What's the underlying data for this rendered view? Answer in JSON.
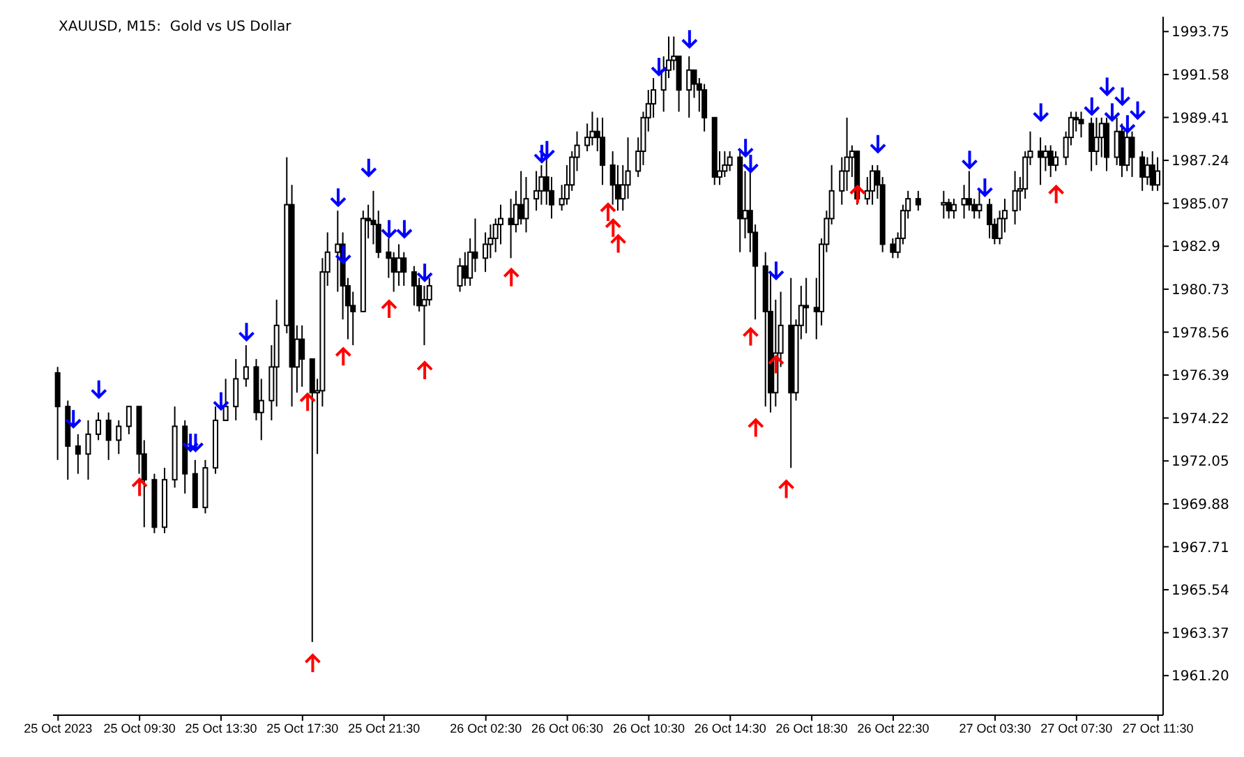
{
  "chart_data": {
    "type": "candlestick",
    "title": "XAUUSD, M15:  Gold vs US Dollar",
    "x": [
      "2023-10-25T05:30",
      "2023-10-25T06:00",
      "2023-10-25T06:30",
      "2023-10-25T07:00",
      "2023-10-25T07:30",
      "2023-10-25T08:00",
      "2023-10-25T08:30",
      "2023-10-25T09:00",
      "2023-10-25T09:30",
      "2023-10-25T09:45",
      "2023-10-25T10:15",
      "2023-10-25T10:45",
      "2023-10-25T11:15",
      "2023-10-25T11:45",
      "2023-10-25T12:15",
      "2023-10-25T12:45",
      "2023-10-25T13:15",
      "2023-10-25T13:45",
      "2023-10-25T14:15",
      "2023-10-25T14:45",
      "2023-10-25T15:15",
      "2023-10-25T15:30",
      "2023-10-25T16:00",
      "2023-10-25T16:15",
      "2023-10-25T16:45",
      "2023-10-25T17:00",
      "2023-10-25T17:15",
      "2023-10-25T17:30",
      "2023-10-25T18:00",
      "2023-10-25T18:15",
      "2023-10-25T18:30",
      "2023-10-25T18:45",
      "2023-10-25T19:15",
      "2023-10-25T19:30",
      "2023-10-25T19:45",
      "2023-10-25T20:00",
      "2023-10-25T20:30",
      "2023-10-25T20:45",
      "2023-10-25T21:00",
      "2023-10-25T21:15",
      "2023-10-25T21:45",
      "2023-10-25T22:00",
      "2023-10-25T22:15",
      "2023-10-25T22:30",
      "2023-10-25T23:00",
      "2023-10-25T23:15",
      "2023-10-25T23:30",
      "2023-10-25T23:45",
      "2023-10-26T01:15",
      "2023-10-26T01:30",
      "2023-10-26T01:45",
      "2023-10-26T02:00",
      "2023-10-26T02:30",
      "2023-10-26T02:45",
      "2023-10-26T03:00",
      "2023-10-26T03:15",
      "2023-10-26T03:45",
      "2023-10-26T04:00",
      "2023-10-26T04:15",
      "2023-10-26T04:30",
      "2023-10-26T05:00",
      "2023-10-26T05:15",
      "2023-10-26T05:30",
      "2023-10-26T05:45",
      "2023-10-26T06:15",
      "2023-10-26T06:30",
      "2023-10-26T06:45",
      "2023-10-26T07:00",
      "2023-10-26T07:30",
      "2023-10-26T07:45",
      "2023-10-26T08:00",
      "2023-10-26T08:15",
      "2023-10-26T08:45",
      "2023-10-26T09:00",
      "2023-10-26T09:15",
      "2023-10-26T09:30",
      "2023-10-26T10:00",
      "2023-10-26T10:15",
      "2023-10-26T10:30",
      "2023-10-26T10:45",
      "2023-10-26T11:15",
      "2023-10-26T11:30",
      "2023-10-26T11:45",
      "2023-10-26T12:00",
      "2023-10-26T12:30",
      "2023-10-26T12:45",
      "2023-10-26T13:00",
      "2023-10-26T13:15",
      "2023-10-26T13:45",
      "2023-10-26T14:00",
      "2023-10-26T14:15",
      "2023-10-26T14:30",
      "2023-10-26T15:00",
      "2023-10-26T15:15",
      "2023-10-26T15:30",
      "2023-10-26T15:45",
      "2023-10-26T16:15",
      "2023-10-26T16:30",
      "2023-10-26T16:45",
      "2023-10-26T17:00",
      "2023-10-26T17:30",
      "2023-10-26T17:45",
      "2023-10-26T18:00",
      "2023-10-26T18:15",
      "2023-10-26T18:45",
      "2023-10-26T19:00",
      "2023-10-26T19:15",
      "2023-10-26T19:30",
      "2023-10-26T20:00",
      "2023-10-26T20:15",
      "2023-10-26T20:30",
      "2023-10-26T20:45",
      "2023-10-26T21:15",
      "2023-10-26T21:30",
      "2023-10-26T21:45",
      "2023-10-26T22:00",
      "2023-10-26T22:30",
      "2023-10-26T22:45",
      "2023-10-26T23:00",
      "2023-10-26T23:15",
      "2023-10-26T23:45",
      "2023-10-27T01:00",
      "2023-10-27T01:15",
      "2023-10-27T01:30",
      "2023-10-27T02:00",
      "2023-10-27T02:15",
      "2023-10-27T02:30",
      "2023-10-27T02:45",
      "2023-10-27T03:15",
      "2023-10-27T03:30",
      "2023-10-27T03:45",
      "2023-10-27T04:00",
      "2023-10-27T04:30",
      "2023-10-27T04:45",
      "2023-10-27T05:00",
      "2023-10-27T05:15",
      "2023-10-27T05:45",
      "2023-10-27T06:00",
      "2023-10-27T06:15",
      "2023-10-27T06:30",
      "2023-10-27T07:00",
      "2023-10-27T07:15",
      "2023-10-27T07:30",
      "2023-10-27T07:45",
      "2023-10-27T08:15",
      "2023-10-27T08:30",
      "2023-10-27T08:45",
      "2023-10-27T09:00",
      "2023-10-27T09:30",
      "2023-10-27T09:45",
      "2023-10-27T10:00",
      "2023-10-27T10:15",
      "2023-10-27T10:45",
      "2023-10-27T11:00",
      "2023-10-27T11:15",
      "2023-10-27T11:30"
    ],
    "ohlc": [
      [
        1976.5,
        1976.8,
        1972.1,
        1974.8
      ],
      [
        1974.8,
        1975.1,
        1971.1,
        1972.8
      ],
      [
        1972.8,
        1973.4,
        1971.4,
        1972.4
      ],
      [
        1972.4,
        1974.1,
        1971.1,
        1973.4
      ],
      [
        1973.4,
        1974.5,
        1973.1,
        1974.1
      ],
      [
        1974.1,
        1974.5,
        1972.1,
        1973.1
      ],
      [
        1973.1,
        1974.1,
        1972.4,
        1973.8
      ],
      [
        1973.8,
        1974.8,
        1973.4,
        1974.8
      ],
      [
        1974.8,
        1974.8,
        1971.4,
        1972.4
      ],
      [
        1972.4,
        1973.1,
        1968.7,
        1971.1
      ],
      [
        1971.1,
        1971.4,
        1968.4,
        1968.7
      ],
      [
        1968.7,
        1971.7,
        1968.4,
        1971.1
      ],
      [
        1971.1,
        1974.8,
        1970.7,
        1973.8
      ],
      [
        1973.8,
        1974.1,
        1970.4,
        1971.4
      ],
      [
        1971.4,
        1972.1,
        1969.7,
        1969.7
      ],
      [
        1969.7,
        1972.1,
        1969.4,
        1971.7
      ],
      [
        1971.7,
        1974.8,
        1971.4,
        1974.1
      ],
      [
        1974.1,
        1976.2,
        1974.1,
        1974.8
      ],
      [
        1974.8,
        1977.2,
        1974.1,
        1976.2
      ],
      [
        1976.2,
        1977.9,
        1975.8,
        1976.8
      ],
      [
        1976.8,
        1977.2,
        1974.1,
        1974.5
      ],
      [
        1974.5,
        1976.2,
        1973.1,
        1975.1
      ],
      [
        1975.1,
        1977.9,
        1974.1,
        1976.8
      ],
      [
        1976.8,
        1980.2,
        1974.8,
        1978.9
      ],
      [
        1978.9,
        1987.4,
        1978.5,
        1985.0
      ],
      [
        1985.0,
        1986.0,
        1974.8,
        1976.8
      ],
      [
        1976.8,
        1978.9,
        1975.5,
        1978.2
      ],
      [
        1978.2,
        1978.9,
        1975.8,
        1977.2
      ],
      [
        1977.2,
        1977.2,
        1962.9,
        1975.5
      ],
      [
        1975.5,
        1976.2,
        1972.4,
        1975.6
      ],
      [
        1975.6,
        1982.3,
        1974.8,
        1981.6
      ],
      [
        1981.6,
        1983.6,
        1980.9,
        1982.6
      ],
      [
        1982.6,
        1984.7,
        1980.6,
        1983.0
      ],
      [
        1983.0,
        1983.6,
        1979.2,
        1980.9
      ],
      [
        1980.9,
        1981.3,
        1978.2,
        1979.9
      ],
      [
        1979.9,
        1980.6,
        1977.9,
        1979.6
      ],
      [
        1979.6,
        1984.7,
        1979.6,
        1984.3
      ],
      [
        1984.3,
        1985.0,
        1983.3,
        1984.2
      ],
      [
        1984.2,
        1985.7,
        1983.0,
        1984.0
      ],
      [
        1984.0,
        1984.7,
        1982.3,
        1982.6
      ],
      [
        1982.6,
        1983.3,
        1981.3,
        1982.3
      ],
      [
        1982.3,
        1982.6,
        1980.6,
        1981.6
      ],
      [
        1981.6,
        1983.0,
        1980.9,
        1982.3
      ],
      [
        1982.3,
        1982.6,
        1980.9,
        1981.6
      ],
      [
        1981.6,
        1981.9,
        1979.9,
        1980.9
      ],
      [
        1980.9,
        1981.3,
        1979.6,
        1979.9
      ],
      [
        1979.9,
        1980.9,
        1977.9,
        1980.2
      ],
      [
        1980.2,
        1981.3,
        1979.9,
        1980.9
      ],
      [
        1980.9,
        1982.3,
        1980.6,
        1981.9
      ],
      [
        1981.9,
        1982.6,
        1980.9,
        1981.3
      ],
      [
        1981.3,
        1983.3,
        1980.9,
        1982.6
      ],
      [
        1982.6,
        1984.3,
        1981.6,
        1982.3
      ],
      [
        1982.3,
        1983.6,
        1981.6,
        1983.0
      ],
      [
        1983.0,
        1984.0,
        1982.3,
        1983.3
      ],
      [
        1983.3,
        1984.3,
        1982.6,
        1984.0
      ],
      [
        1984.0,
        1985.0,
        1983.0,
        1984.3
      ],
      [
        1984.3,
        1985.3,
        1982.3,
        1984.0
      ],
      [
        1984.0,
        1985.7,
        1983.6,
        1985.0
      ],
      [
        1985.0,
        1986.7,
        1984.0,
        1984.3
      ],
      [
        1984.3,
        1986.4,
        1983.6,
        1985.3
      ],
      [
        1985.3,
        1986.7,
        1984.7,
        1985.7
      ],
      [
        1985.7,
        1987.0,
        1985.0,
        1986.4
      ],
      [
        1986.4,
        1987.4,
        1985.0,
        1985.7
      ],
      [
        1985.7,
        1986.4,
        1984.3,
        1985.0
      ],
      [
        1985.0,
        1986.0,
        1984.7,
        1985.3
      ],
      [
        1985.3,
        1987.0,
        1985.0,
        1986.0
      ],
      [
        1986.0,
        1987.7,
        1985.7,
        1987.4
      ],
      [
        1987.4,
        1988.7,
        1986.7,
        1988.0
      ],
      [
        1988.0,
        1989.1,
        1987.7,
        1988.4
      ],
      [
        1988.4,
        1989.7,
        1988.0,
        1988.7
      ],
      [
        1988.7,
        1989.4,
        1987.7,
        1988.4
      ],
      [
        1988.4,
        1989.4,
        1986.0,
        1987.0
      ],
      [
        1987.0,
        1987.7,
        1985.0,
        1986.0
      ],
      [
        1986.0,
        1987.0,
        1984.7,
        1985.3
      ],
      [
        1985.3,
        1987.0,
        1984.7,
        1986.0
      ],
      [
        1986.0,
        1988.4,
        1985.3,
        1986.7
      ],
      [
        1986.7,
        1988.4,
        1986.4,
        1987.7
      ],
      [
        1987.7,
        1989.7,
        1987.0,
        1989.4
      ],
      [
        1989.4,
        1990.8,
        1988.7,
        1990.1
      ],
      [
        1990.1,
        1991.4,
        1989.4,
        1990.8
      ],
      [
        1990.8,
        1992.5,
        1989.7,
        1991.8
      ],
      [
        1991.8,
        1993.5,
        1991.4,
        1992.3
      ],
      [
        1992.3,
        1993.5,
        1991.8,
        1992.5
      ],
      [
        1992.5,
        1992.5,
        1989.7,
        1990.8
      ],
      [
        1990.8,
        1992.5,
        1989.4,
        1991.8
      ],
      [
        1991.8,
        1991.8,
        1990.4,
        1991.1
      ],
      [
        1991.1,
        1991.4,
        1989.7,
        1990.8
      ],
      [
        1990.8,
        1991.1,
        1988.7,
        1989.4
      ],
      [
        1989.4,
        1989.4,
        1986.0,
        1986.4
      ],
      [
        1986.4,
        1987.7,
        1986.0,
        1986.7
      ],
      [
        1986.7,
        1987.7,
        1986.4,
        1987.0
      ],
      [
        1987.0,
        1987.7,
        1986.7,
        1987.4
      ],
      [
        1987.4,
        1987.7,
        1982.6,
        1984.3
      ],
      [
        1984.3,
        1986.7,
        1983.3,
        1984.7
      ],
      [
        1984.7,
        1986.7,
        1982.6,
        1983.6
      ],
      [
        1983.6,
        1984.0,
        1979.2,
        1981.9
      ],
      [
        1981.9,
        1982.6,
        1974.8,
        1979.6
      ],
      [
        1979.6,
        1981.6,
        1974.5,
        1975.5
      ],
      [
        1975.5,
        1980.2,
        1974.8,
        1977.5
      ],
      [
        1977.5,
        1980.6,
        1976.8,
        1978.9
      ],
      [
        1978.9,
        1981.3,
        1971.7,
        1975.5
      ],
      [
        1975.5,
        1979.2,
        1975.1,
        1978.9
      ],
      [
        1978.9,
        1980.9,
        1978.2,
        1979.9
      ],
      [
        1979.9,
        1981.3,
        1978.5,
        1979.8
      ],
      [
        1979.8,
        1981.3,
        1978.2,
        1979.6
      ],
      [
        1979.6,
        1983.3,
        1978.9,
        1983.0
      ],
      [
        1983.0,
        1984.7,
        1982.6,
        1984.3
      ],
      [
        1984.3,
        1987.0,
        1984.0,
        1985.7
      ],
      [
        1985.7,
        1987.4,
        1985.0,
        1986.7
      ],
      [
        1986.7,
        1989.4,
        1985.7,
        1987.4
      ],
      [
        1987.4,
        1988.0,
        1986.4,
        1987.7
      ],
      [
        1987.7,
        1987.7,
        1985.0,
        1985.3
      ],
      [
        1985.3,
        1986.4,
        1985.0,
        1985.7
      ],
      [
        1985.7,
        1987.0,
        1985.0,
        1986.7
      ],
      [
        1986.7,
        1987.0,
        1985.3,
        1986.0
      ],
      [
        1986.0,
        1986.4,
        1982.6,
        1983.0
      ],
      [
        1983.0,
        1983.3,
        1982.3,
        1982.6
      ],
      [
        1982.6,
        1983.6,
        1982.3,
        1983.3
      ],
      [
        1983.3,
        1985.0,
        1983.0,
        1984.7
      ],
      [
        1984.7,
        1985.7,
        1984.3,
        1985.3
      ],
      [
        1985.3,
        1985.7,
        1984.7,
        1985.0
      ],
      [
        1985.0,
        1985.7,
        1984.3,
        1985.1
      ],
      [
        1985.1,
        1985.3,
        1984.3,
        1984.7
      ],
      [
        1984.7,
        1985.3,
        1984.3,
        1985.0
      ],
      [
        1985.0,
        1986.0,
        1984.3,
        1985.3
      ],
      [
        1985.3,
        1986.7,
        1984.7,
        1985.0
      ],
      [
        1985.0,
        1985.3,
        1984.3,
        1984.7
      ],
      [
        1984.7,
        1985.7,
        1984.3,
        1985.0
      ],
      [
        1985.0,
        1985.3,
        1983.3,
        1984.0
      ],
      [
        1984.0,
        1984.3,
        1983.0,
        1983.3
      ],
      [
        1983.3,
        1984.7,
        1983.0,
        1984.3
      ],
      [
        1984.3,
        1985.3,
        1983.6,
        1984.7
      ],
      [
        1984.7,
        1986.7,
        1984.0,
        1985.7
      ],
      [
        1985.7,
        1986.4,
        1984.7,
        1985.8
      ],
      [
        1985.8,
        1987.7,
        1985.3,
        1987.4
      ],
      [
        1987.4,
        1988.7,
        1987.0,
        1987.7
      ],
      [
        1987.7,
        1988.4,
        1986.0,
        1987.4
      ],
      [
        1987.4,
        1988.0,
        1986.7,
        1987.7
      ],
      [
        1987.7,
        1988.0,
        1986.4,
        1987.0
      ],
      [
        1987.0,
        1987.7,
        1986.7,
        1987.4
      ],
      [
        1987.4,
        1988.7,
        1987.0,
        1988.4
      ],
      [
        1988.4,
        1989.7,
        1988.0,
        1989.4
      ],
      [
        1989.4,
        1989.7,
        1988.7,
        1989.3
      ],
      [
        1989.3,
        1989.7,
        1988.4,
        1989.1
      ],
      [
        1989.1,
        1989.4,
        1986.7,
        1987.7
      ],
      [
        1987.7,
        1989.4,
        1987.0,
        1988.4
      ],
      [
        1988.4,
        1989.4,
        1987.4,
        1989.1
      ],
      [
        1989.1,
        1989.4,
        1986.7,
        1987.4
      ],
      [
        1987.4,
        1989.4,
        1987.0,
        1988.7
      ],
      [
        1988.7,
        1989.1,
        1986.4,
        1987.0
      ],
      [
        1987.0,
        1988.7,
        1986.7,
        1988.4
      ],
      [
        1988.4,
        1988.7,
        1986.4,
        1987.4
      ],
      [
        1987.4,
        1987.7,
        1985.7,
        1986.4
      ],
      [
        1986.4,
        1987.4,
        1986.0,
        1987.0
      ],
      [
        1987.0,
        1987.7,
        1985.7,
        1986.0
      ],
      [
        1986.0,
        1987.4,
        1985.7,
        1986.7
      ]
    ],
    "series": [
      {
        "type": "scatter",
        "color": "#0000ff",
        "x": [
          "2023-10-25T06:15",
          "2023-10-25T07:30",
          "2023-10-25T12:00",
          "2023-10-25T12:15",
          "2023-10-25T13:30",
          "2023-10-25T14:45",
          "2023-10-25T19:15",
          "2023-10-25T19:30",
          "2023-10-25T20:45",
          "2023-10-25T21:45",
          "2023-10-25T22:30",
          "2023-10-25T23:30",
          "2023-10-26T05:15",
          "2023-10-26T05:30",
          "2023-10-26T11:00",
          "2023-10-26T12:30",
          "2023-10-26T15:15",
          "2023-10-26T15:30",
          "2023-10-26T16:45",
          "2023-10-26T21:45",
          "2023-10-27T02:15",
          "2023-10-27T03:00",
          "2023-10-27T05:45",
          "2023-10-27T08:15",
          "2023-10-27T09:00",
          "2023-10-27T09:15",
          "2023-10-27T09:45",
          "2023-10-27T10:00",
          "2023-10-27T10:30"
        ],
        "values": [
          1974.2,
          1975.7,
          1973.0,
          1973.0,
          1975.1,
          1978.6,
          1985.4,
          1982.5,
          1986.9,
          1983.8,
          1983.8,
          1981.6,
          1987.6,
          1987.8,
          1992.0,
          1993.4,
          1987.9,
          1987.1,
          1981.7,
          1988.1,
          1987.3,
          1985.9,
          1989.7,
          1990.0,
          1991.0,
          1989.7,
          1990.5,
          1989.1,
          1989.8
        ]
      },
      {
        "type": "scatter",
        "color": "#ff0000",
        "x": [
          "2023-10-25T09:30",
          "2023-10-25T17:45",
          "2023-10-25T18:00",
          "2023-10-25T19:30",
          "2023-10-25T21:45",
          "2023-10-25T23:30",
          "2023-10-26T03:45",
          "2023-10-26T08:30",
          "2023-10-26T08:45",
          "2023-10-26T09:00",
          "2023-10-26T15:30",
          "2023-10-26T15:45",
          "2023-10-26T16:45",
          "2023-10-26T17:15",
          "2023-10-26T20:45",
          "2023-10-27T06:30"
        ],
        "values": [
          1970.7,
          1975.0,
          1961.8,
          1977.3,
          1979.7,
          1976.6,
          1981.3,
          1984.6,
          1983.8,
          1983.0,
          1978.3,
          1973.7,
          1976.9,
          1970.6,
          1985.5,
          1985.5
        ]
      }
    ],
    "xlim": [
      "2023-10-25T05:15",
      "2023-10-27T11:45"
    ],
    "xticks": [
      {
        "value": "2023-10-25T05:30",
        "label": "25 Oct 2023"
      },
      {
        "value": "2023-10-25T09:30",
        "label": "25 Oct 09:30"
      },
      {
        "value": "2023-10-25T13:30",
        "label": "25 Oct 13:30"
      },
      {
        "value": "2023-10-25T17:30",
        "label": "25 Oct 17:30"
      },
      {
        "value": "2023-10-25T21:30",
        "label": "25 Oct 21:30"
      },
      {
        "value": "2023-10-26T02:30",
        "label": "26 Oct 02:30"
      },
      {
        "value": "2023-10-26T06:30",
        "label": "26 Oct 06:30"
      },
      {
        "value": "2023-10-26T10:30",
        "label": "26 Oct 10:30"
      },
      {
        "value": "2023-10-26T14:30",
        "label": "26 Oct 14:30"
      },
      {
        "value": "2023-10-26T18:30",
        "label": "26 Oct 18:30"
      },
      {
        "value": "2023-10-26T22:30",
        "label": "26 Oct 22:30"
      },
      {
        "value": "2023-10-27T03:30",
        "label": "27 Oct 03:30"
      },
      {
        "value": "2023-10-27T07:30",
        "label": "27 Oct 07:30"
      },
      {
        "value": "2023-10-27T11:30",
        "label": "27 Oct 11:30"
      }
    ],
    "ylim": [
      1959.2,
      1994.5
    ],
    "yticks": [
      {
        "value": 1961.2,
        "label": "1961.20"
      },
      1963.37,
      1965.54,
      1967.71,
      1969.88,
      1972.05,
      1974.22,
      1976.39,
      1978.56,
      1980.73,
      1982.9,
      1985.07,
      1987.24,
      1989.41,
      1991.58,
      1993.75
    ],
    "grid": false,
    "legend": false
  }
}
